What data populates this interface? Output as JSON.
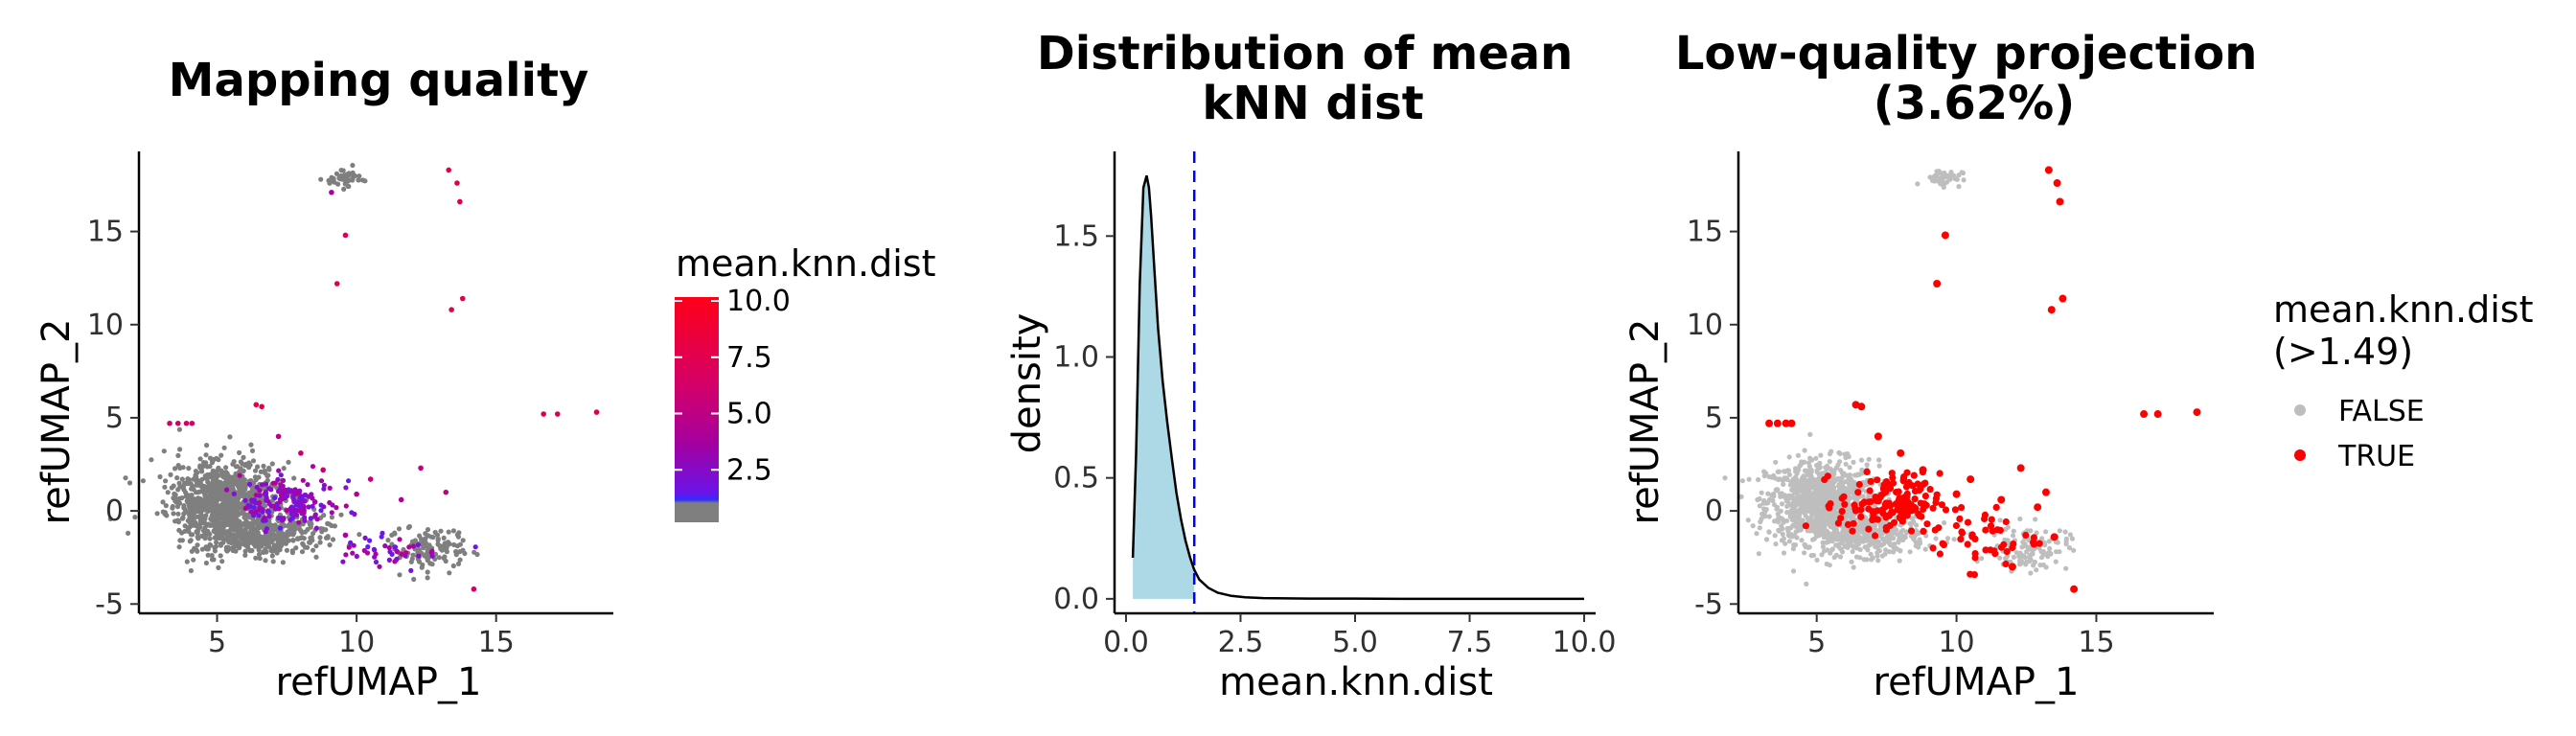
{
  "chart_data": [
    {
      "type": "scatter",
      "title": "Mapping quality",
      "xlabel": "refUMAP_1",
      "ylabel": "refUMAP_2",
      "xlim": [
        2.2,
        19.2
      ],
      "ylim": [
        -5.5,
        19.3
      ],
      "xticks": [
        5,
        10,
        15
      ],
      "yticks": [
        -5,
        0,
        5,
        10,
        15
      ],
      "legend": {
        "title": "mean.knn.dist",
        "type": "colorbar",
        "ticks": [
          "10.0",
          "7.5",
          "5.0",
          "2.5"
        ],
        "tick_values": [
          10,
          7.5,
          5,
          2.5
        ],
        "range": [
          0,
          10
        ],
        "colors": [
          "#7f7f7f",
          "#5a1dff",
          "#b0009c",
          "#ff0018"
        ],
        "placement": "right"
      },
      "clusters": [
        {
          "cx": 5.2,
          "cy": 0.5,
          "rx": 2.0,
          "ry": 2.2,
          "n": 950,
          "value_range": [
            0.0,
            1.2
          ]
        },
        {
          "cx": 6.8,
          "cy": -1.3,
          "rx": 2.1,
          "ry": 1.1,
          "n": 380,
          "value_range": [
            0.0,
            1.3
          ]
        },
        {
          "cx": 7.6,
          "cy": 0.4,
          "rx": 1.7,
          "ry": 1.4,
          "n": 170,
          "value_range": [
            1.5,
            3.2
          ]
        },
        {
          "cx": 12.6,
          "cy": -2.0,
          "rx": 1.4,
          "ry": 1.2,
          "n": 120,
          "value_range": [
            0.0,
            1.4
          ]
        },
        {
          "cx": 11.2,
          "cy": -2.3,
          "rx": 1.6,
          "ry": 0.9,
          "n": 45,
          "value_range": [
            1.5,
            3.5
          ]
        },
        {
          "cx": 9.5,
          "cy": 17.9,
          "rx": 0.7,
          "ry": 0.45,
          "n": 45,
          "value_range": [
            0.0,
            1.3
          ]
        }
      ],
      "points": [
        {
          "x": 3.3,
          "y": 4.7,
          "v": 6.0
        },
        {
          "x": 3.6,
          "y": 4.7,
          "v": 6.0
        },
        {
          "x": 3.9,
          "y": 4.7,
          "v": 6.0
        },
        {
          "x": 4.1,
          "y": 4.7,
          "v": 6.0
        },
        {
          "x": 6.4,
          "y": 5.7,
          "v": 7.5
        },
        {
          "x": 6.6,
          "y": 5.6,
          "v": 7.5
        },
        {
          "x": 9.3,
          "y": 12.2,
          "v": 7.0
        },
        {
          "x": 9.6,
          "y": 14.8,
          "v": 6.5
        },
        {
          "x": 13.3,
          "y": 18.3,
          "v": 7.5
        },
        {
          "x": 13.6,
          "y": 17.6,
          "v": 7.0
        },
        {
          "x": 13.7,
          "y": 16.6,
          "v": 7.0
        },
        {
          "x": 13.4,
          "y": 10.8,
          "v": 7.5
        },
        {
          "x": 13.8,
          "y": 11.4,
          "v": 7.5
        },
        {
          "x": 16.7,
          "y": 5.2,
          "v": 7.0
        },
        {
          "x": 17.2,
          "y": 5.2,
          "v": 7.0
        },
        {
          "x": 18.6,
          "y": 5.3,
          "v": 7.0
        },
        {
          "x": 14.2,
          "y": -4.2,
          "v": 6.0
        },
        {
          "x": 8.0,
          "y": 3.1,
          "v": 5.5
        },
        {
          "x": 8.8,
          "y": 2.2,
          "v": 5.0
        },
        {
          "x": 10.5,
          "y": 1.7,
          "v": 5.0
        },
        {
          "x": 12.3,
          "y": 2.3,
          "v": 4.5
        },
        {
          "x": 13.2,
          "y": 1.0,
          "v": 4.5
        },
        {
          "x": 9.1,
          "y": 17.1,
          "v": 3.0
        },
        {
          "x": 7.2,
          "y": 4.0,
          "v": 4.0
        },
        {
          "x": 10.0,
          "y": 0.9,
          "v": 3.5
        },
        {
          "x": 11.6,
          "y": 0.6,
          "v": 3.5
        },
        {
          "x": 9.6,
          "y": -1.3,
          "v": 3.0
        }
      ]
    },
    {
      "type": "area",
      "title": "Distribution of mean\nkNN dist",
      "xlabel": "mean.knn.dist",
      "ylabel": "density",
      "xlim": [
        -0.25,
        10.25
      ],
      "ylim": [
        -0.06,
        1.85
      ],
      "xticks": [
        0.0,
        2.5,
        5.0,
        7.5,
        10.0
      ],
      "xtick_labels": [
        "0.0",
        "2.5",
        "5.0",
        "7.5",
        "10.0"
      ],
      "yticks": [
        0.0,
        0.5,
        1.0,
        1.5
      ],
      "ytick_labels": [
        "0.0",
        "0.5",
        "1.0",
        "1.5"
      ],
      "threshold": 1.49,
      "fill_color": "#add8e6",
      "threshold_color": "#0000ff",
      "x": [
        0.15,
        0.22,
        0.3,
        0.38,
        0.45,
        0.5,
        0.55,
        0.62,
        0.7,
        0.8,
        0.9,
        1.0,
        1.1,
        1.2,
        1.3,
        1.4,
        1.49,
        1.6,
        1.8,
        2.0,
        2.3,
        2.6,
        3.0,
        3.5,
        4.0,
        5.0,
        6.0,
        7.0,
        8.0,
        9.0,
        10.0
      ],
      "y": [
        0.17,
        0.6,
        1.3,
        1.7,
        1.75,
        1.7,
        1.58,
        1.36,
        1.12,
        0.9,
        0.73,
        0.58,
        0.44,
        0.33,
        0.24,
        0.17,
        0.12,
        0.08,
        0.045,
        0.025,
        0.012,
        0.006,
        0.003,
        0.002,
        0.001,
        0.001,
        0.0,
        0.0,
        0.0,
        0.0,
        0.0
      ]
    },
    {
      "type": "scatter",
      "title": "Low-quality projection\n(3.62%)",
      "xlabel": "refUMAP_1",
      "ylabel": "refUMAP_2",
      "xlim": [
        2.2,
        19.2
      ],
      "ylim": [
        -5.5,
        19.3
      ],
      "xticks": [
        5,
        10,
        15
      ],
      "yticks": [
        -5,
        0,
        5,
        10,
        15
      ],
      "legend": {
        "title": "mean.knn.dist\n(>1.49)",
        "entries": [
          {
            "label": "FALSE",
            "color": "#bebebe"
          },
          {
            "label": "TRUE",
            "color": "#ff0000"
          }
        ],
        "placement": "right"
      },
      "clusters": [
        {
          "cx": 5.2,
          "cy": 0.5,
          "rx": 2.0,
          "ry": 2.2,
          "n": 950,
          "group": "FALSE"
        },
        {
          "cx": 6.8,
          "cy": -1.3,
          "rx": 2.1,
          "ry": 1.1,
          "n": 380,
          "group": "FALSE"
        },
        {
          "cx": 12.6,
          "cy": -2.0,
          "rx": 1.4,
          "ry": 1.2,
          "n": 120,
          "group": "FALSE"
        },
        {
          "cx": 9.5,
          "cy": 17.9,
          "rx": 0.7,
          "ry": 0.45,
          "n": 45,
          "group": "FALSE"
        },
        {
          "cx": 7.6,
          "cy": 0.4,
          "rx": 1.8,
          "ry": 1.6,
          "n": 150,
          "group": "TRUE"
        },
        {
          "cx": 11.0,
          "cy": -1.5,
          "rx": 2.0,
          "ry": 1.6,
          "n": 45,
          "group": "TRUE"
        }
      ],
      "points": [
        {
          "x": 3.3,
          "y": 4.7,
          "g": "TRUE"
        },
        {
          "x": 3.6,
          "y": 4.7,
          "g": "TRUE"
        },
        {
          "x": 3.9,
          "y": 4.7,
          "g": "TRUE"
        },
        {
          "x": 4.1,
          "y": 4.7,
          "g": "TRUE"
        },
        {
          "x": 6.4,
          "y": 5.7,
          "g": "TRUE"
        },
        {
          "x": 6.6,
          "y": 5.6,
          "g": "TRUE"
        },
        {
          "x": 9.3,
          "y": 12.2,
          "g": "TRUE"
        },
        {
          "x": 9.6,
          "y": 14.8,
          "g": "TRUE"
        },
        {
          "x": 13.3,
          "y": 18.3,
          "g": "TRUE"
        },
        {
          "x": 13.6,
          "y": 17.6,
          "g": "TRUE"
        },
        {
          "x": 13.7,
          "y": 16.6,
          "g": "TRUE"
        },
        {
          "x": 13.4,
          "y": 10.8,
          "g": "TRUE"
        },
        {
          "x": 13.8,
          "y": 11.4,
          "g": "TRUE"
        },
        {
          "x": 16.7,
          "y": 5.2,
          "g": "TRUE"
        },
        {
          "x": 17.2,
          "y": 5.2,
          "g": "TRUE"
        },
        {
          "x": 18.6,
          "y": 5.3,
          "g": "TRUE"
        },
        {
          "x": 14.2,
          "y": -4.2,
          "g": "TRUE"
        },
        {
          "x": 8.0,
          "y": 3.1,
          "g": "TRUE"
        },
        {
          "x": 8.8,
          "y": 2.2,
          "g": "TRUE"
        },
        {
          "x": 10.5,
          "y": 1.7,
          "g": "TRUE"
        },
        {
          "x": 12.3,
          "y": 2.3,
          "g": "TRUE"
        },
        {
          "x": 13.2,
          "y": 1.0,
          "g": "TRUE"
        },
        {
          "x": 7.2,
          "y": 4.0,
          "g": "TRUE"
        },
        {
          "x": 10.0,
          "y": 0.9,
          "g": "TRUE"
        },
        {
          "x": 11.6,
          "y": 0.6,
          "g": "TRUE"
        },
        {
          "x": 12.9,
          "y": 0.2,
          "g": "TRUE"
        },
        {
          "x": 13.5,
          "y": -1.4,
          "g": "TRUE"
        },
        {
          "x": 12.0,
          "y": -3.0,
          "g": "TRUE"
        }
      ]
    }
  ]
}
